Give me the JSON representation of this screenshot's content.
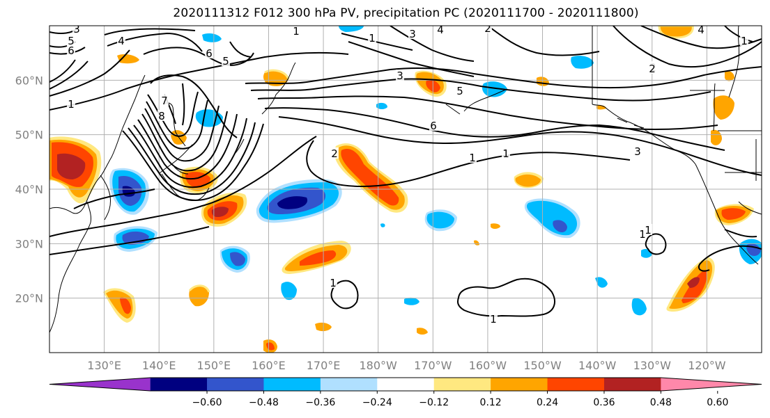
{
  "title": "2020111312 F012 300 hPa PV, precipitation PC (2020111700 - 2020111800)",
  "map": {
    "lon_range": [
      120,
      250
    ],
    "lat_range": [
      10,
      70
    ],
    "lat_ticks": [
      {
        "lat": 20,
        "label": "20°N"
      },
      {
        "lat": 30,
        "label": "30°N"
      },
      {
        "lat": 40,
        "label": "40°N"
      },
      {
        "lat": 50,
        "label": "50°N"
      },
      {
        "lat": 60,
        "label": "60°N"
      }
    ],
    "lon_ticks": [
      {
        "lon": 130,
        "label": "130°E"
      },
      {
        "lon": 140,
        "label": "140°E"
      },
      {
        "lon": 150,
        "label": "150°E"
      },
      {
        "lon": 160,
        "label": "160°E"
      },
      {
        "lon": 170,
        "label": "170°E"
      },
      {
        "lon": 180,
        "label": "180°W"
      },
      {
        "lon": 190,
        "label": "170°W"
      },
      {
        "lon": 200,
        "label": "160°W"
      },
      {
        "lon": 210,
        "label": "150°W"
      },
      {
        "lon": 220,
        "label": "140°W"
      },
      {
        "lon": 230,
        "label": "130°W"
      },
      {
        "lon": 240,
        "label": "120°W"
      }
    ],
    "gridlines": true
  },
  "colorbar": {
    "colors": [
      "#9933cc",
      "#000080",
      "#3355cc",
      "#00bbff",
      "#b0e0ff",
      "#ffffff",
      "#ffe880",
      "#ffa500",
      "#ff4500",
      "#b22222",
      "#ff88aa"
    ],
    "tick_labels": [
      "−0.60",
      "−0.48",
      "−0.36",
      "−0.24",
      "−0.12",
      "0.12",
      "0.24",
      "0.36",
      "0.48",
      "0.60"
    ]
  },
  "pv_contour_labels": [
    "3",
    "5",
    "6",
    "4",
    "1",
    "1",
    "2",
    "6",
    "5",
    "3",
    "4",
    "2",
    "1",
    "3",
    "5",
    "6",
    "2",
    "1",
    "1",
    "1",
    "3",
    "4",
    "2",
    "1",
    "7",
    "8",
    "1",
    "1",
    "1"
  ]
}
